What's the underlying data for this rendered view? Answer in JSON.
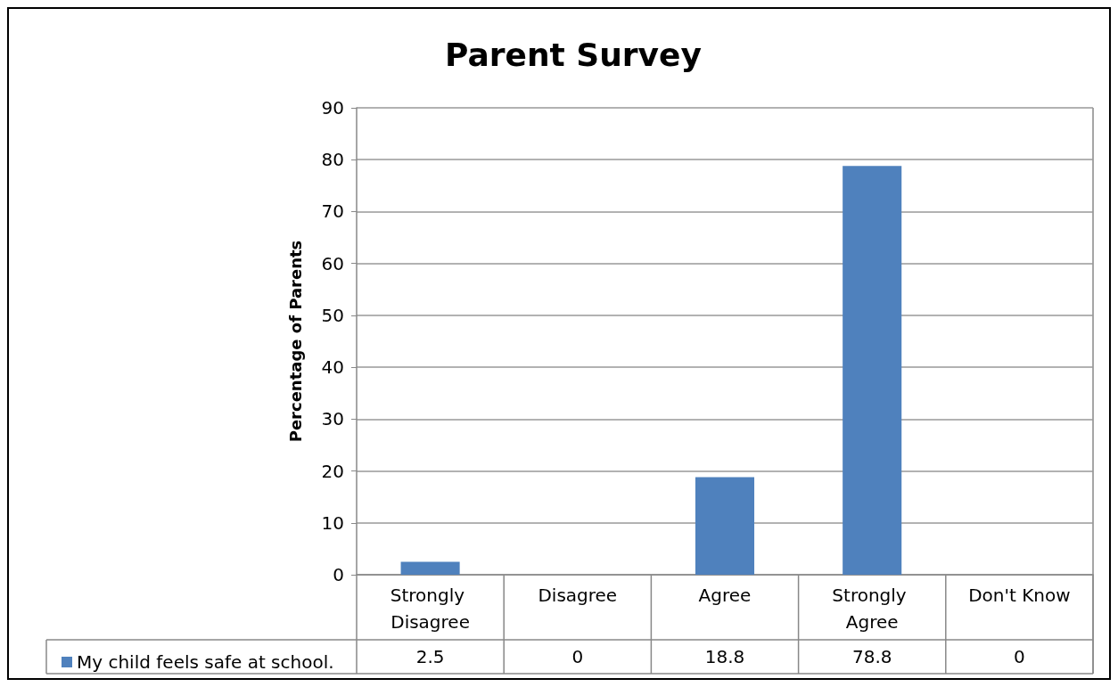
{
  "chart_data": {
    "type": "bar",
    "title": "Parent Survey",
    "ylabel": "Percentage of Parents",
    "categories": [
      "Strongly Disagree",
      "Disagree",
      "Agree",
      "Strongly Agree",
      "Don't Know"
    ],
    "series": [
      {
        "name": "My child feels safe at school.",
        "color": "#4f81bd",
        "values": [
          2.5,
          0,
          18.8,
          78.8,
          0
        ]
      }
    ],
    "ylim": [
      0,
      90
    ],
    "yticks": [
      0,
      10,
      20,
      30,
      40,
      50,
      60,
      70,
      80,
      90
    ],
    "grid": "y",
    "legend": "bottom",
    "data_labels": true
  }
}
